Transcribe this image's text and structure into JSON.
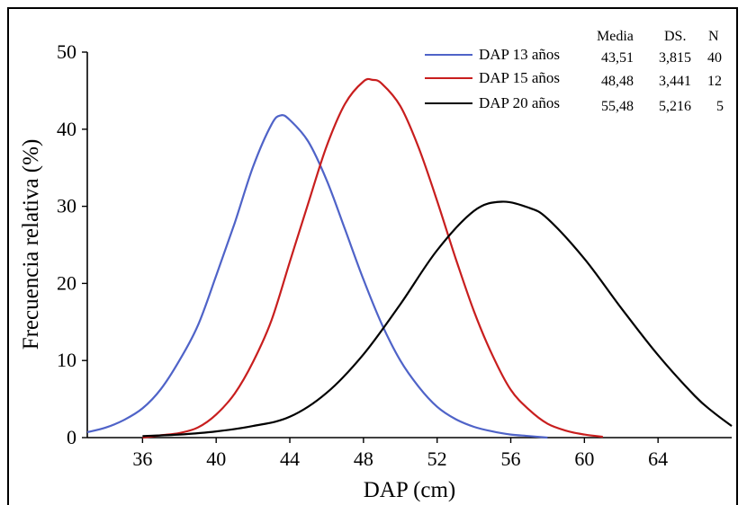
{
  "chart_data": {
    "type": "line",
    "title": "",
    "xlabel": "DAP (cm)",
    "ylabel": "Frecuencia relativa (%)",
    "xlim": [
      33,
      68
    ],
    "ylim": [
      0,
      50
    ],
    "x_ticks": [
      "36",
      "40",
      "44",
      "48",
      "52",
      "56",
      "60",
      "64"
    ],
    "y_ticks": [
      "0",
      "10",
      "20",
      "30",
      "40",
      "50"
    ],
    "grid": false,
    "legend_position": "top-right",
    "stats_headers": [
      "Media",
      "DS.",
      "N"
    ],
    "series": [
      {
        "name": "DAP 13 años",
        "color": "#4f63c8",
        "media": "43,51",
        "ds": "3,815",
        "n": "40",
        "x": [
          33,
          34,
          35,
          36,
          37,
          38,
          39,
          40,
          41,
          42,
          43,
          43.5,
          44,
          45,
          46,
          47,
          48,
          49,
          50,
          51,
          52,
          53,
          54,
          55,
          56,
          57,
          58
        ],
        "y": [
          0.7,
          1.3,
          2.3,
          3.8,
          6.3,
          10.0,
          14.5,
          21.0,
          27.8,
          35.1,
          40.6,
          41.8,
          41.2,
          38.4,
          33.4,
          27.0,
          20.5,
          14.7,
          10.0,
          6.6,
          4.0,
          2.4,
          1.4,
          0.8,
          0.4,
          0.2,
          0.0
        ]
      },
      {
        "name": "DAP 15 años",
        "color": "#c81e1e",
        "media": "48,48",
        "ds": "3,441",
        "n": "12",
        "x": [
          36,
          37,
          38,
          39,
          40,
          41,
          42,
          43,
          44,
          45,
          46,
          47,
          48,
          48.5,
          49,
          50,
          51,
          52,
          53,
          54,
          55,
          56,
          57,
          58,
          59,
          60,
          61
        ],
        "y": [
          0.0,
          0.3,
          0.6,
          1.3,
          3.0,
          5.7,
          9.8,
          15.2,
          22.8,
          30.4,
          37.8,
          43.3,
          46.2,
          46.4,
          45.9,
          43.0,
          37.6,
          30.7,
          23.3,
          16.4,
          10.7,
          6.2,
          3.6,
          1.8,
          0.9,
          0.4,
          0.1
        ]
      },
      {
        "name": "DAP 20 años",
        "color": "#000000",
        "media": "55,48",
        "ds": "5,216",
        "n": "5",
        "x": [
          36,
          38,
          40,
          42,
          44,
          46,
          48,
          50,
          52,
          54,
          55.5,
          57,
          58,
          60,
          62,
          64,
          66,
          67,
          68
        ],
        "y": [
          0.2,
          0.4,
          0.8,
          1.5,
          2.7,
          5.8,
          10.8,
          17.3,
          24.3,
          29.4,
          30.6,
          29.8,
          28.4,
          23.2,
          16.8,
          10.7,
          5.4,
          3.3,
          1.5
        ]
      }
    ]
  }
}
